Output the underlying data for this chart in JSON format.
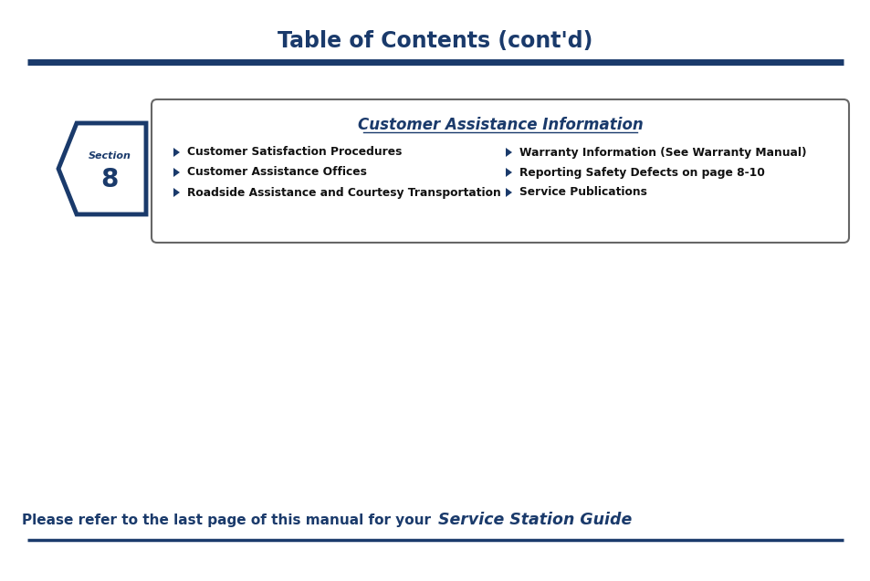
{
  "title": "Table of Contents (cont'd)",
  "title_color": "#1a3a6b",
  "title_fontsize": 17,
  "line_color": "#1a3a6b",
  "bg_color": "#ffffff",
  "section_number": "8",
  "box_title": "Customer Assistance Information",
  "box_items_left": [
    "Customer Satisfaction Procedures",
    "Customer Assistance Offices",
    "Roadside Assistance and Courtesy Transportation"
  ],
  "box_items_right": [
    "Warranty Information (See Warranty Manual)",
    "Reporting Safety Defects on page 8-10",
    "Service Publications"
  ],
  "footer_text_regular": "Please refer to the last page of this manual for your ",
  "footer_text_italic": "Service Station Guide",
  "footer_color": "#1a3a6b",
  "item_color": "#111111",
  "arrow_color": "#1a3a6b"
}
